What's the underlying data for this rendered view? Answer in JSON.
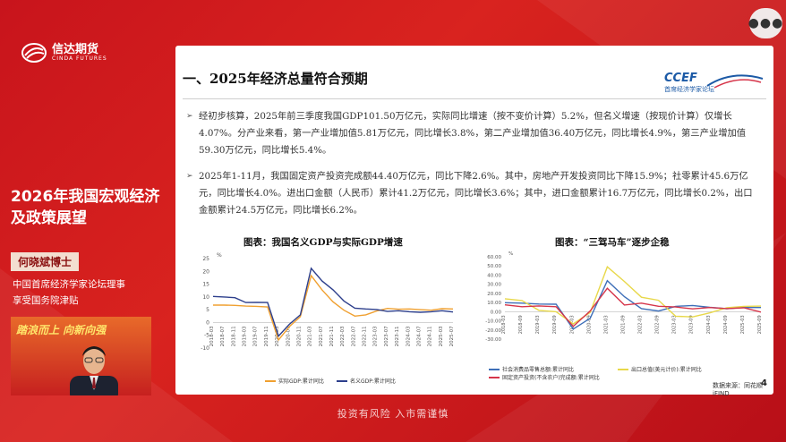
{
  "brand": {
    "name_cn": "信达期货",
    "name_en": "CINDA FUTURES"
  },
  "side": {
    "title": "2026年我国宏观经济及政策展望",
    "speaker": "何晓斌博士",
    "desc1": "中国首席经济学家论坛理事",
    "desc2": "享受国务院津贴",
    "banner": "踏浪而上 向新向强"
  },
  "menu": {
    "icon": "more-dots"
  },
  "slide": {
    "title": "一、2025年经济总量符合预期",
    "partner_logo": "CCEF",
    "partner_sub": "首席经济学家论坛",
    "paragraph1": "经初步核算，2025年前三季度我国GDP101.50万亿元，实际同比增速（按不变价计算）5.2%，但名义增速（按现价计算）仅增长4.07%。分产业来看，第一产业增加值5.81万亿元，同比增长3.8%，第二产业增加值36.40万亿元，同比增长4.9%，第三产业增加值59.30万亿元，同比增长5.4%。",
    "paragraph2": "2025年1-11月，我国固定资产投资完成额44.40万亿元，同比下降2.6%。其中，房地产开发投资同比下降15.9%；社零累计45.6万亿元，同比增长4.0%。进出口金额（人民币）累计41.2万亿元，同比增长3.6%；其中，进口金额累计16.7万亿元，同比增长0.2%，出口金额累计24.5万亿元，同比增长6.2%。",
    "source": "数据来源：同花顺iFIND",
    "page": "4"
  },
  "chart_data": [
    {
      "type": "line",
      "title": "图表：我国名义GDP与实际GDP增速",
      "ylabel": "%",
      "ylim": [
        -10,
        25
      ],
      "yticks": [
        "25",
        "20",
        "15",
        "10",
        "5",
        "0",
        "-5",
        "-10"
      ],
      "x": [
        "2018-03",
        "2018-07",
        "2018-11",
        "2019-03",
        "2019-07",
        "2019-11",
        "2020-03",
        "2020-07",
        "2020-11",
        "2021-03",
        "2021-07",
        "2021-11",
        "2022-03",
        "2022-07",
        "2022-11",
        "2023-03",
        "2023-07",
        "2023-11",
        "2024-03",
        "2024-07",
        "2024-11",
        "2025-03",
        "2025-07"
      ],
      "series": [
        {
          "name": "实际GDP:累计同比",
          "color": "#f0a030",
          "values": [
            6.8,
            6.8,
            6.7,
            6.4,
            6.3,
            6.1,
            -6.8,
            -1.6,
            2.3,
            18.3,
            12.7,
            8.1,
            4.8,
            2.5,
            3.0,
            4.5,
            5.5,
            5.2,
            5.3,
            5.0,
            4.8,
            5.4,
            5.3
          ]
        },
        {
          "name": "名义GDP:累计同比",
          "color": "#2d3f8c",
          "values": [
            10.2,
            10.0,
            9.7,
            7.8,
            7.9,
            7.8,
            -5.3,
            -0.7,
            3.0,
            21.2,
            16.2,
            12.8,
            8.4,
            5.6,
            5.3,
            5.1,
            4.3,
            4.6,
            4.2,
            4.0,
            4.2,
            4.6,
            4.1
          ]
        }
      ]
    },
    {
      "type": "line",
      "title": "图表：“三驾马车”逐步企稳",
      "ylabel": "%",
      "ylim": [
        -30,
        60
      ],
      "yticks": [
        "60.00",
        "50.00",
        "40.00",
        "30.00",
        "20.00",
        "10.00",
        "0.00",
        "-10.00",
        "-20.00",
        "-30.00"
      ],
      "x": [
        "2018-03",
        "2018-09",
        "2019-03",
        "2019-09",
        "2020-03",
        "2020-09",
        "2021-03",
        "2021-09",
        "2022-03",
        "2022-09",
        "2023-03",
        "2023-09",
        "2024-03",
        "2024-09",
        "2025-03",
        "2025-09"
      ],
      "series": [
        {
          "name": "社会消费品零售总额:累计同比",
          "color": "#3e6fb8",
          "values": [
            9.8,
            9.3,
            8.3,
            8.2,
            -19.0,
            -7.2,
            33.9,
            16.4,
            3.3,
            0.7,
            5.8,
            6.8,
            4.7,
            3.3,
            4.6,
            4.5
          ]
        },
        {
          "name": "出口总值(美元计价):累计同比",
          "color": "#e8d84a",
          "values": [
            14.1,
            12.2,
            1.4,
            -0.1,
            -13.4,
            -0.8,
            49.0,
            33.0,
            15.8,
            12.5,
            -5.0,
            -5.7,
            -1.3,
            4.3,
            5.8,
            6.1
          ]
        },
        {
          "name": "固定资产投资(不含农户)完成额:累计同比",
          "color": "#d6354a",
          "values": [
            7.5,
            5.4,
            6.3,
            5.4,
            -16.1,
            0.8,
            25.6,
            7.3,
            9.3,
            5.9,
            5.1,
            3.1,
            4.5,
            3.4,
            4.2,
            -0.5
          ]
        }
      ]
    }
  ],
  "footer": "投资有风险 入市需谨慎"
}
